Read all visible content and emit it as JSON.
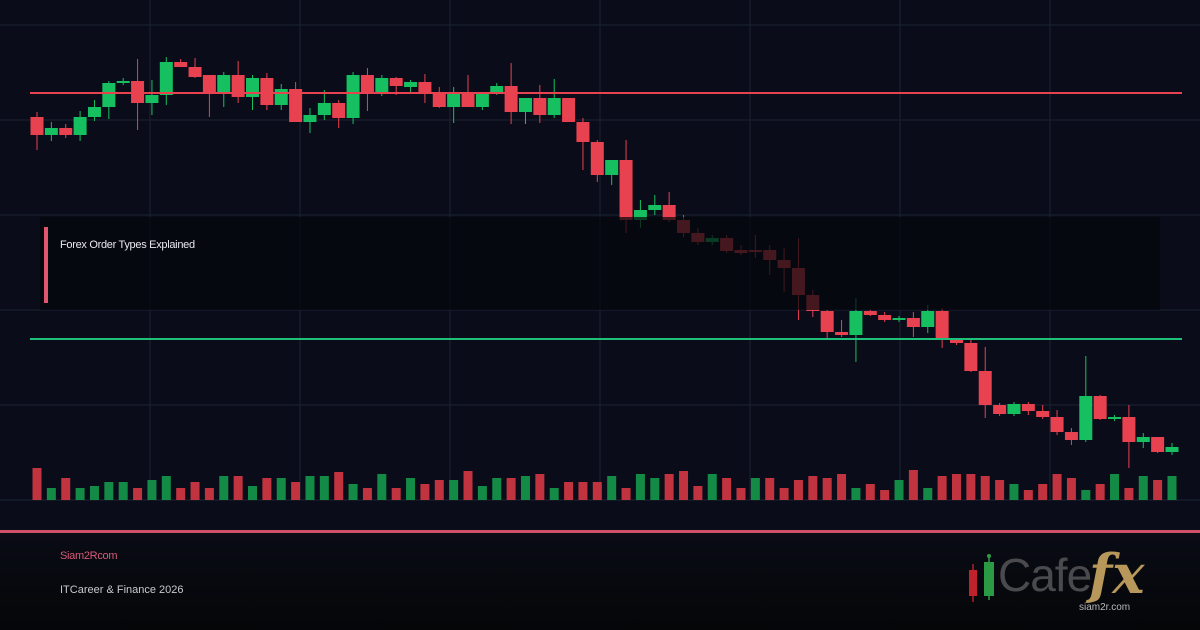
{
  "title": "Forex Order Types Explained",
  "footer": {
    "brand": "Siam2Rcom",
    "tagline": "ITCareer & Finance 2026"
  },
  "logo": {
    "text_cafe": "Cafe",
    "text_fx": "fx",
    "url": "siam2r.com"
  },
  "colors": {
    "up": "#16c060",
    "down": "#e8414f",
    "resistance": "#e8414f",
    "support": "#1fc07a",
    "accent": "#d0506a"
  },
  "chart_data": {
    "type": "candlestick",
    "title": "",
    "grid": true,
    "price_range": [
      1000,
      1475
    ],
    "resistance_level": 1407,
    "support_level": 1161,
    "candles_ohlc": [
      [
        1383,
        1388,
        1350,
        1365
      ],
      [
        1365,
        1378,
        1359,
        1372
      ],
      [
        1372,
        1376,
        1362,
        1365
      ],
      [
        1365,
        1389,
        1359,
        1383
      ],
      [
        1383,
        1400,
        1379,
        1393
      ],
      [
        1393,
        1419,
        1381,
        1417
      ],
      [
        1417,
        1422,
        1415,
        1419
      ],
      [
        1419,
        1441,
        1370,
        1397
      ],
      [
        1397,
        1420,
        1385,
        1405
      ],
      [
        1405,
        1443,
        1395,
        1438
      ],
      [
        1438,
        1441,
        1433,
        1433
      ],
      [
        1433,
        1442,
        1422,
        1423
      ],
      [
        1425,
        1425,
        1383,
        1407
      ],
      [
        1407,
        1428,
        1393,
        1425
      ],
      [
        1425,
        1439,
        1397,
        1403
      ],
      [
        1403,
        1425,
        1390,
        1422
      ],
      [
        1422,
        1427,
        1390,
        1395
      ],
      [
        1395,
        1416,
        1390,
        1411
      ],
      [
        1411,
        1418,
        1378,
        1378
      ],
      [
        1378,
        1392,
        1367,
        1385
      ],
      [
        1385,
        1410,
        1380,
        1397
      ],
      [
        1397,
        1400,
        1372,
        1382
      ],
      [
        1382,
        1428,
        1376,
        1425
      ],
      [
        1425,
        1432,
        1389,
        1407
      ],
      [
        1407,
        1425,
        1404,
        1422
      ],
      [
        1422,
        1423,
        1405,
        1414
      ],
      [
        1413,
        1420,
        1406,
        1418
      ],
      [
        1418,
        1426,
        1397,
        1407
      ],
      [
        1408,
        1413,
        1392,
        1393
      ],
      [
        1393,
        1413,
        1377,
        1407
      ],
      [
        1407,
        1425,
        1393,
        1393
      ],
      [
        1393,
        1408,
        1390,
        1407
      ],
      [
        1407,
        1417,
        1405,
        1414
      ],
      [
        1414,
        1437,
        1376,
        1388
      ],
      [
        1388,
        1402,
        1376,
        1402
      ],
      [
        1402,
        1415,
        1377,
        1385
      ],
      [
        1385,
        1421,
        1382,
        1402
      ],
      [
        1402,
        1402,
        1378,
        1378
      ],
      [
        1378,
        1382,
        1330,
        1358
      ],
      [
        1358,
        1360,
        1318,
        1325
      ],
      [
        1325,
        1340,
        1315,
        1340
      ],
      [
        1340,
        1360,
        1267,
        1280
      ],
      [
        1280,
        1300,
        1272,
        1290
      ],
      [
        1290,
        1305,
        1285,
        1295
      ],
      [
        1295,
        1308,
        1278,
        1280
      ],
      [
        1280,
        1285,
        1263,
        1267
      ],
      [
        1267,
        1272,
        1255,
        1258
      ],
      [
        1258,
        1265,
        1255,
        1262
      ],
      [
        1262,
        1265,
        1247,
        1249
      ],
      [
        1250,
        1255,
        1245,
        1247
      ],
      [
        1250,
        1265,
        1242,
        1248
      ],
      [
        1250,
        1255,
        1225,
        1240
      ],
      [
        1240,
        1252,
        1208,
        1232
      ],
      [
        1232,
        1262,
        1180,
        1205
      ],
      [
        1205,
        1210,
        1183,
        1189
      ],
      [
        1189,
        1190,
        1160,
        1168
      ],
      [
        1168,
        1180,
        1163,
        1165
      ],
      [
        1165,
        1202,
        1138,
        1189
      ],
      [
        1189,
        1190,
        1184,
        1185
      ],
      [
        1185,
        1188,
        1178,
        1180
      ],
      [
        1180,
        1184,
        1178,
        1182
      ],
      [
        1182,
        1188,
        1163,
        1173
      ],
      [
        1173,
        1195,
        1167,
        1189
      ],
      [
        1189,
        1192,
        1152,
        1162
      ],
      [
        1162,
        1162,
        1155,
        1157
      ],
      [
        1157,
        1160,
        1128,
        1129
      ],
      [
        1129,
        1153,
        1082,
        1095
      ],
      [
        1095,
        1097,
        1084,
        1086
      ],
      [
        1086,
        1098,
        1084,
        1096
      ],
      [
        1096,
        1098,
        1085,
        1089
      ],
      [
        1089,
        1095,
        1081,
        1083
      ],
      [
        1083,
        1090,
        1065,
        1068
      ],
      [
        1068,
        1072,
        1055,
        1060
      ],
      [
        1060,
        1144,
        1058,
        1104
      ],
      [
        1104,
        1105,
        1080,
        1081
      ],
      [
        1081,
        1085,
        1079,
        1083
      ],
      [
        1083,
        1095,
        1032,
        1058
      ],
      [
        1058,
        1067,
        1052,
        1063
      ],
      [
        1063,
        1063,
        1047,
        1048
      ],
      [
        1048,
        1057,
        1045,
        1053
      ]
    ],
    "volume": [
      32,
      12,
      22,
      12,
      14,
      18,
      18,
      12,
      20,
      24,
      12,
      18,
      12,
      24,
      24,
      14,
      22,
      22,
      18,
      24,
      24,
      28,
      16,
      12,
      26,
      12,
      22,
      16,
      20,
      20,
      29,
      14,
      22,
      22,
      24,
      26,
      12,
      18,
      18,
      18,
      24,
      12,
      26,
      22,
      26,
      29,
      14,
      26,
      22,
      12,
      22,
      22,
      12,
      20,
      24,
      22,
      26,
      12,
      16,
      10,
      20,
      30,
      12,
      24,
      26,
      26,
      24,
      20,
      16,
      10,
      16,
      26,
      22,
      10,
      16,
      26,
      12,
      24,
      20,
      24
    ],
    "volume_colors_up": [
      false,
      true,
      false,
      true,
      true,
      true,
      true,
      false,
      true,
      true,
      false,
      false,
      false,
      true,
      false,
      true,
      false,
      true,
      false,
      true,
      true,
      false,
      true,
      false,
      true,
      false,
      true,
      false,
      false,
      true,
      false,
      true,
      true,
      false,
      true,
      false,
      true,
      false,
      false,
      false,
      true,
      false,
      true,
      true,
      false,
      false,
      false,
      true,
      false,
      false,
      true,
      false,
      false,
      false,
      false,
      false,
      false,
      true,
      false,
      false,
      true,
      false,
      true,
      false,
      false,
      false,
      false,
      false,
      true,
      false,
      false,
      false,
      false,
      true,
      false,
      true,
      false,
      true,
      false,
      true
    ]
  }
}
